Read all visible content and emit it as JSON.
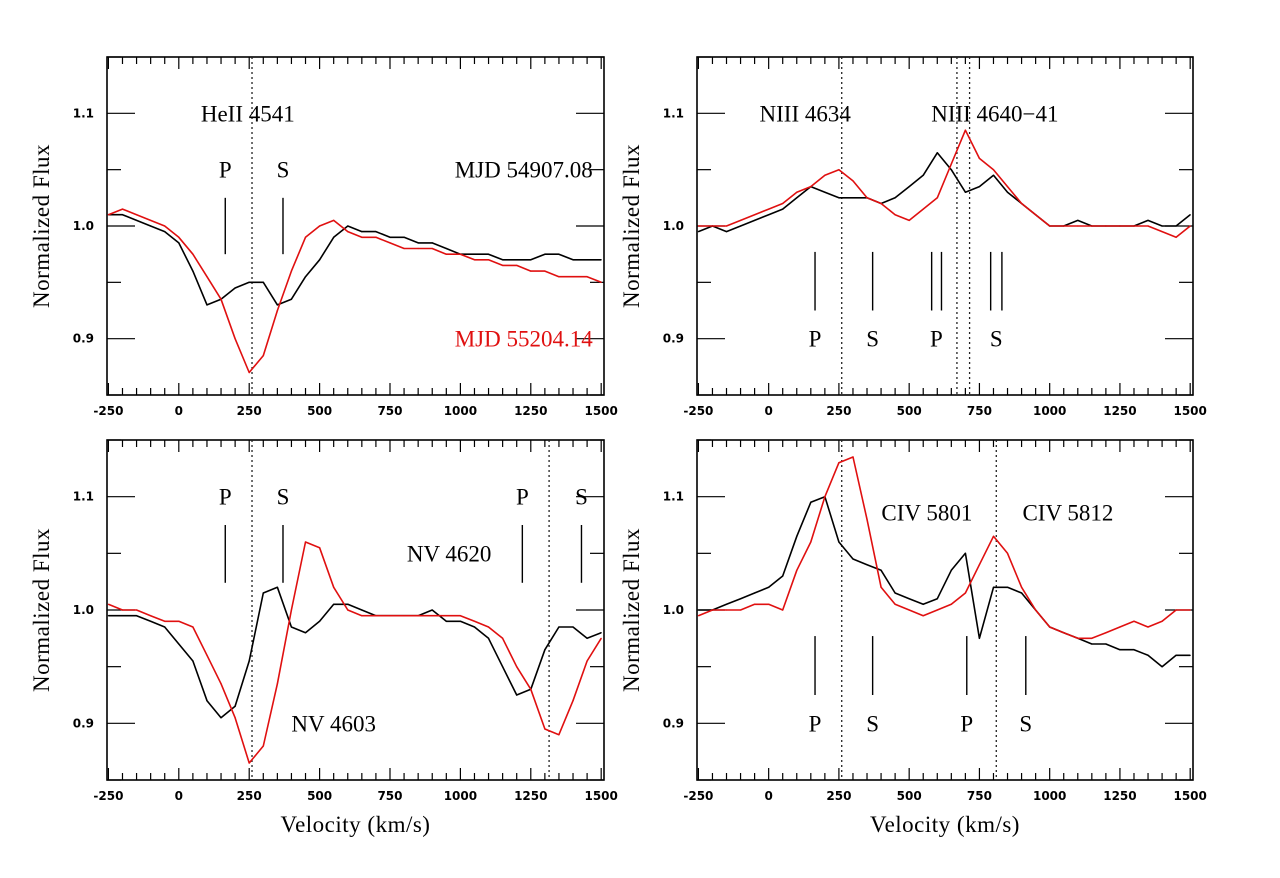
{
  "chart_data": [
    {
      "type": "line",
      "panel": "top-left",
      "xlabel": "",
      "ylabel": "Normalized Flux",
      "xlim": [
        -255,
        1510
      ],
      "ylim": [
        0.85,
        1.15
      ],
      "xticks": [
        -250,
        0,
        250,
        500,
        750,
        1000,
        1250,
        1500
      ],
      "xtick_labels": [
        "-250",
        "0",
        "250",
        "500",
        "750",
        "1000",
        "1250",
        "1500"
      ],
      "yticks": [
        0.9,
        1.0,
        1.1
      ],
      "ytick_labels": [
        "0.9",
        "1.0",
        "1.1"
      ],
      "grid": false,
      "x": [
        -250,
        -200,
        -150,
        -100,
        -50,
        0,
        50,
        100,
        150,
        200,
        250,
        300,
        350,
        400,
        450,
        500,
        550,
        600,
        650,
        700,
        750,
        800,
        850,
        900,
        950,
        1000,
        1050,
        1100,
        1150,
        1200,
        1250,
        1300,
        1350,
        1400,
        1450,
        1500
      ],
      "series": [
        {
          "name": "MJD 54907.08",
          "color": "#000000",
          "values": [
            1.01,
            1.01,
            1.005,
            1.0,
            0.995,
            0.985,
            0.96,
            0.93,
            0.935,
            0.945,
            0.95,
            0.95,
            0.93,
            0.935,
            0.955,
            0.97,
            0.99,
            1.0,
            0.995,
            0.995,
            0.99,
            0.99,
            0.985,
            0.985,
            0.98,
            0.975,
            0.975,
            0.975,
            0.97,
            0.97,
            0.97,
            0.975,
            0.975,
            0.97,
            0.97,
            0.97
          ]
        },
        {
          "name": "MJD 55204.14",
          "color": "#e01010",
          "values": [
            1.01,
            1.015,
            1.01,
            1.005,
            1.0,
            0.99,
            0.975,
            0.955,
            0.935,
            0.9,
            0.87,
            0.885,
            0.925,
            0.96,
            0.99,
            1.0,
            1.005,
            0.995,
            0.99,
            0.99,
            0.985,
            0.98,
            0.98,
            0.98,
            0.975,
            0.975,
            0.97,
            0.97,
            0.965,
            0.965,
            0.96,
            0.96,
            0.955,
            0.955,
            0.955,
            0.95
          ]
        }
      ],
      "dotted_lines": [
        260
      ],
      "markers": [
        {
          "x": 165,
          "y1": 0.975,
          "y2": 1.025
        },
        {
          "x": 370,
          "y1": 0.975,
          "y2": 1.025
        }
      ],
      "annotations": [
        {
          "text": "HeII 4541",
          "x": 245,
          "y": 1.1,
          "anchor": "middle",
          "color": "#000000"
        },
        {
          "text": "P",
          "x": 165,
          "y": 1.05,
          "anchor": "middle",
          "color": "#000000"
        },
        {
          "text": "S",
          "x": 370,
          "y": 1.05,
          "anchor": "middle",
          "color": "#000000"
        },
        {
          "text": "MJD 54907.08",
          "x": 1470,
          "y": 1.05,
          "anchor": "end",
          "color": "#000000"
        },
        {
          "text": "MJD 55204.14",
          "x": 1470,
          "y": 0.9,
          "anchor": "end",
          "color": "#e01010"
        }
      ]
    },
    {
      "type": "line",
      "panel": "top-right",
      "xlabel": "",
      "ylabel": "Normalized Flux",
      "xlim": [
        -255,
        1510
      ],
      "ylim": [
        0.85,
        1.15
      ],
      "xticks": [
        -250,
        0,
        250,
        500,
        750,
        1000,
        1250,
        1500
      ],
      "xtick_labels": [
        "-250",
        "0",
        "250",
        "500",
        "750",
        "1000",
        "1250",
        "1500"
      ],
      "yticks": [
        0.9,
        1.0,
        1.1
      ],
      "ytick_labels": [
        "0.9",
        "1.0",
        "1.1"
      ],
      "grid": false,
      "x": [
        -250,
        -200,
        -150,
        -100,
        -50,
        0,
        50,
        100,
        150,
        200,
        250,
        300,
        350,
        400,
        450,
        500,
        550,
        600,
        650,
        700,
        750,
        800,
        850,
        900,
        950,
        1000,
        1050,
        1100,
        1150,
        1200,
        1250,
        1300,
        1350,
        1400,
        1450,
        1500
      ],
      "series": [
        {
          "color": "#000000",
          "values": [
            0.995,
            1.0,
            0.995,
            1.0,
            1.005,
            1.01,
            1.015,
            1.025,
            1.035,
            1.03,
            1.025,
            1.025,
            1.025,
            1.02,
            1.025,
            1.035,
            1.045,
            1.065,
            1.05,
            1.03,
            1.035,
            1.045,
            1.03,
            1.02,
            1.01,
            1.0,
            1.0,
            1.005,
            1.0,
            1.0,
            1.0,
            1.0,
            1.005,
            1.0,
            1.0,
            1.01
          ]
        },
        {
          "color": "#e01010",
          "values": [
            1.0,
            1.0,
            1.0,
            1.005,
            1.01,
            1.015,
            1.02,
            1.03,
            1.035,
            1.045,
            1.05,
            1.04,
            1.025,
            1.02,
            1.01,
            1.005,
            1.015,
            1.025,
            1.055,
            1.085,
            1.06,
            1.05,
            1.035,
            1.02,
            1.01,
            1.0,
            1.0,
            1.0,
            1.0,
            1.0,
            1.0,
            1.0,
            1.0,
            0.995,
            0.99,
            1.0
          ]
        }
      ],
      "dotted_lines": [
        260,
        670,
        715
      ],
      "markers": [
        {
          "x": 165,
          "y1": 0.925,
          "y2": 0.977
        },
        {
          "x": 370,
          "y1": 0.925,
          "y2": 0.977
        },
        {
          "x": 580,
          "y1": 0.925,
          "y2": 0.977
        },
        {
          "x": 615,
          "y1": 0.925,
          "y2": 0.977
        },
        {
          "x": 790,
          "y1": 0.925,
          "y2": 0.977
        },
        {
          "x": 830,
          "y1": 0.925,
          "y2": 0.977
        }
      ],
      "annotations": [
        {
          "text": "NIII 4634",
          "x": 130,
          "y": 1.1,
          "anchor": "middle",
          "color": "#000000"
        },
        {
          "text": "NIII 4640−41",
          "x": 805,
          "y": 1.1,
          "anchor": "middle",
          "color": "#000000"
        },
        {
          "text": "P",
          "x": 165,
          "y": 0.9,
          "anchor": "middle",
          "color": "#000000"
        },
        {
          "text": "S",
          "x": 370,
          "y": 0.9,
          "anchor": "middle",
          "color": "#000000"
        },
        {
          "text": "P",
          "x": 597,
          "y": 0.9,
          "anchor": "middle",
          "color": "#000000"
        },
        {
          "text": "S",
          "x": 810,
          "y": 0.9,
          "anchor": "middle",
          "color": "#000000"
        }
      ]
    },
    {
      "type": "line",
      "panel": "bottom-left",
      "xlabel": "Velocity (km/s)",
      "ylabel": "Normalized Flux",
      "xlim": [
        -255,
        1510
      ],
      "ylim": [
        0.85,
        1.15
      ],
      "xticks": [
        -250,
        0,
        250,
        500,
        750,
        1000,
        1250,
        1500
      ],
      "xtick_labels": [
        "-250",
        "0",
        "250",
        "500",
        "750",
        "1000",
        "1250",
        "1500"
      ],
      "yticks": [
        0.9,
        1.0,
        1.1
      ],
      "ytick_labels": [
        "0.9",
        "1.0",
        "1.1"
      ],
      "grid": false,
      "x": [
        -250,
        -200,
        -150,
        -100,
        -50,
        0,
        50,
        100,
        150,
        200,
        250,
        300,
        350,
        400,
        450,
        500,
        550,
        600,
        650,
        700,
        750,
        800,
        850,
        900,
        950,
        1000,
        1050,
        1100,
        1150,
        1200,
        1250,
        1300,
        1350,
        1400,
        1450,
        1500
      ],
      "series": [
        {
          "color": "#000000",
          "values": [
            0.995,
            0.995,
            0.995,
            0.99,
            0.985,
            0.97,
            0.955,
            0.92,
            0.905,
            0.915,
            0.955,
            1.015,
            1.02,
            0.985,
            0.98,
            0.99,
            1.005,
            1.005,
            1.0,
            0.995,
            0.995,
            0.995,
            0.995,
            1.0,
            0.99,
            0.99,
            0.985,
            0.975,
            0.95,
            0.925,
            0.93,
            0.965,
            0.985,
            0.985,
            0.975,
            0.98
          ]
        },
        {
          "color": "#e01010",
          "values": [
            1.005,
            1.0,
            1.0,
            0.995,
            0.99,
            0.99,
            0.985,
            0.96,
            0.935,
            0.905,
            0.865,
            0.88,
            0.935,
            1.0,
            1.06,
            1.055,
            1.02,
            1.0,
            0.995,
            0.995,
            0.995,
            0.995,
            0.995,
            0.995,
            0.995,
            0.995,
            0.99,
            0.985,
            0.975,
            0.95,
            0.93,
            0.895,
            0.89,
            0.92,
            0.955,
            0.975
          ]
        }
      ],
      "dotted_lines": [
        260,
        1315
      ],
      "markers": [
        {
          "x": 165,
          "y1": 1.024,
          "y2": 1.075
        },
        {
          "x": 370,
          "y1": 1.024,
          "y2": 1.075
        },
        {
          "x": 1220,
          "y1": 1.024,
          "y2": 1.075
        },
        {
          "x": 1430,
          "y1": 1.024,
          "y2": 1.075
        }
      ],
      "annotations": [
        {
          "text": "P",
          "x": 165,
          "y": 1.1,
          "anchor": "middle",
          "color": "#000000"
        },
        {
          "text": "S",
          "x": 370,
          "y": 1.1,
          "anchor": "middle",
          "color": "#000000"
        },
        {
          "text": "P",
          "x": 1220,
          "y": 1.1,
          "anchor": "middle",
          "color": "#000000"
        },
        {
          "text": "S",
          "x": 1430,
          "y": 1.1,
          "anchor": "middle",
          "color": "#000000"
        },
        {
          "text": "NV 4620",
          "x": 960,
          "y": 1.05,
          "anchor": "middle",
          "color": "#000000"
        },
        {
          "text": "NV 4603",
          "x": 550,
          "y": 0.9,
          "anchor": "middle",
          "color": "#000000"
        }
      ]
    },
    {
      "type": "line",
      "panel": "bottom-right",
      "xlabel": "Velocity (km/s)",
      "ylabel": "Normalized Flux",
      "xlim": [
        -255,
        1510
      ],
      "ylim": [
        0.85,
        1.15
      ],
      "xticks": [
        -250,
        0,
        250,
        500,
        750,
        1000,
        1250,
        1500
      ],
      "xtick_labels": [
        "-250",
        "0",
        "250",
        "500",
        "750",
        "1000",
        "1250",
        "1500"
      ],
      "yticks": [
        0.9,
        1.0,
        1.1
      ],
      "ytick_labels": [
        "0.9",
        "1.0",
        "1.1"
      ],
      "grid": false,
      "x": [
        -250,
        -200,
        -150,
        -100,
        -50,
        0,
        50,
        100,
        150,
        200,
        250,
        300,
        350,
        400,
        450,
        500,
        550,
        600,
        650,
        700,
        750,
        800,
        850,
        900,
        950,
        1000,
        1050,
        1100,
        1150,
        1200,
        1250,
        1300,
        1350,
        1400,
        1450,
        1500
      ],
      "series": [
        {
          "color": "#000000",
          "values": [
            1.0,
            1.0,
            1.005,
            1.01,
            1.015,
            1.02,
            1.03,
            1.065,
            1.095,
            1.1,
            1.06,
            1.045,
            1.04,
            1.035,
            1.015,
            1.01,
            1.005,
            1.01,
            1.035,
            1.05,
            0.975,
            1.02,
            1.02,
            1.015,
            1.0,
            0.985,
            0.98,
            0.975,
            0.97,
            0.97,
            0.965,
            0.965,
            0.96,
            0.95,
            0.96,
            0.96
          ]
        },
        {
          "color": "#e01010",
          "values": [
            0.995,
            1.0,
            1.0,
            1.0,
            1.005,
            1.005,
            1.0,
            1.035,
            1.06,
            1.1,
            1.13,
            1.135,
            1.08,
            1.02,
            1.005,
            1.0,
            0.995,
            1.0,
            1.005,
            1.015,
            1.04,
            1.065,
            1.05,
            1.02,
            1.0,
            0.985,
            0.98,
            0.975,
            0.975,
            0.98,
            0.985,
            0.99,
            0.985,
            0.99,
            1.0,
            1.0
          ]
        }
      ],
      "dotted_lines": [
        260,
        810
      ],
      "markers": [
        {
          "x": 165,
          "y1": 0.925,
          "y2": 0.977
        },
        {
          "x": 370,
          "y1": 0.925,
          "y2": 0.977
        },
        {
          "x": 705,
          "y1": 0.925,
          "y2": 0.977
        },
        {
          "x": 915,
          "y1": 0.925,
          "y2": 0.977
        }
      ],
      "annotations": [
        {
          "text": "CIV 5801",
          "x": 563,
          "y": 1.086,
          "anchor": "middle",
          "color": "#000000"
        },
        {
          "text": "CIV 5812",
          "x": 1065,
          "y": 1.086,
          "anchor": "middle",
          "color": "#000000"
        },
        {
          "text": "P",
          "x": 165,
          "y": 0.9,
          "anchor": "middle",
          "color": "#000000"
        },
        {
          "text": "S",
          "x": 370,
          "y": 0.9,
          "anchor": "middle",
          "color": "#000000"
        },
        {
          "text": "P",
          "x": 705,
          "y": 0.9,
          "anchor": "middle",
          "color": "#000000"
        },
        {
          "text": "S",
          "x": 915,
          "y": 0.9,
          "anchor": "middle",
          "color": "#000000"
        }
      ]
    }
  ]
}
